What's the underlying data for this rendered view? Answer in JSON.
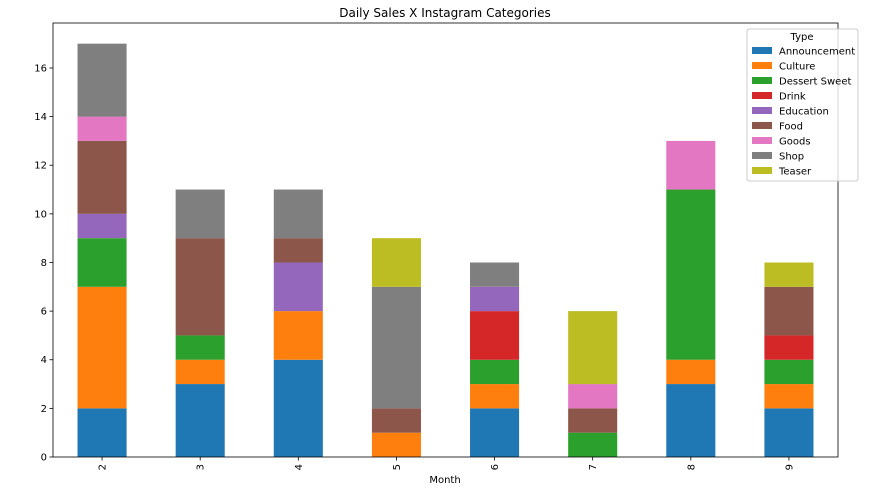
{
  "chart_data": {
    "type": "bar",
    "stacked": true,
    "title": "Daily Sales X Instagram Categories",
    "xlabel": "Month",
    "ylabel": "",
    "categories": [
      "2",
      "3",
      "4",
      "5",
      "6",
      "7",
      "8",
      "9"
    ],
    "ylim": [
      0,
      17.85
    ],
    "yticks": [
      0,
      2,
      4,
      6,
      8,
      10,
      12,
      14,
      16
    ],
    "grid": false,
    "legend": {
      "title": "Type",
      "placement": "top-right"
    },
    "series": [
      {
        "name": "Announcement",
        "color": "#1f77b4",
        "values": [
          2,
          3,
          4,
          0,
          2,
          0,
          3,
          2
        ]
      },
      {
        "name": "Culture",
        "color": "#ff7f0e",
        "values": [
          5,
          1,
          2,
          1,
          1,
          0,
          1,
          1
        ]
      },
      {
        "name": "Dessert Sweet",
        "color": "#2ca02c",
        "values": [
          2,
          1,
          0,
          0,
          1,
          1,
          7,
          1
        ]
      },
      {
        "name": "Drink",
        "color": "#d62728",
        "values": [
          0,
          0,
          0,
          0,
          2,
          0,
          0,
          1
        ]
      },
      {
        "name": "Education",
        "color": "#9467bd",
        "values": [
          1,
          0,
          2,
          0,
          1,
          0,
          0,
          0
        ]
      },
      {
        "name": "Food",
        "color": "#8c564b",
        "values": [
          3,
          4,
          1,
          1,
          0,
          1,
          0,
          2
        ]
      },
      {
        "name": "Goods",
        "color": "#e377c2",
        "values": [
          1,
          0,
          0,
          0,
          0,
          1,
          2,
          0
        ]
      },
      {
        "name": "Shop",
        "color": "#7f7f7f",
        "values": [
          3,
          2,
          2,
          5,
          1,
          0,
          0,
          0
        ]
      },
      {
        "name": "Teaser",
        "color": "#bcbd22",
        "values": [
          0,
          0,
          0,
          2,
          0,
          3,
          0,
          1
        ]
      }
    ]
  }
}
